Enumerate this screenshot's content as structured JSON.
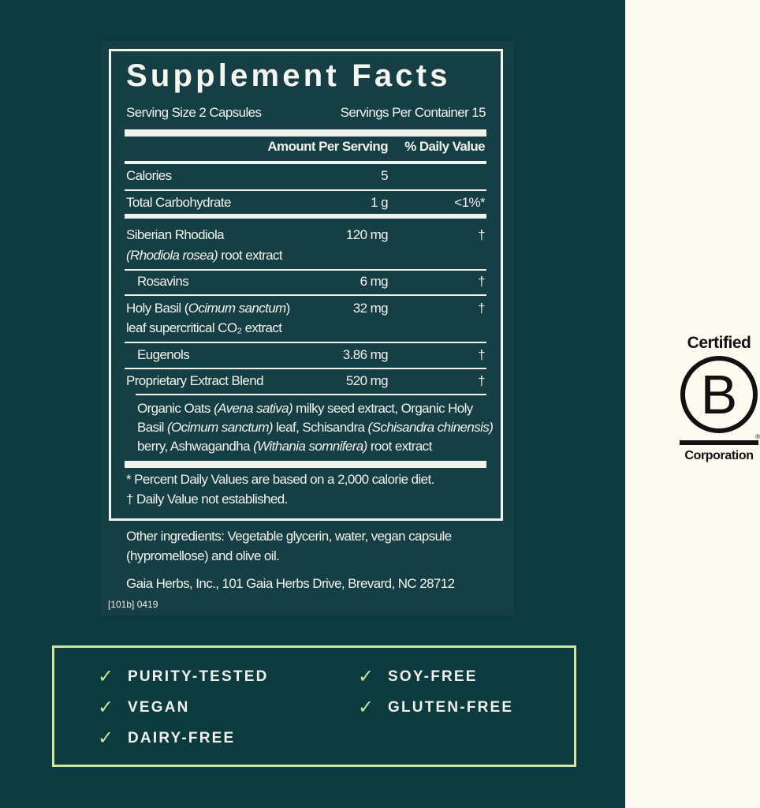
{
  "colors": {
    "background": "#0b3a3f",
    "panel": "#153f44",
    "accent": "#cfe6a4",
    "side": "#fdfaf0"
  },
  "label": {
    "title": "Supplement Facts",
    "serving_size": "Serving Size 2 Capsules",
    "servings_per_container": "Servings Per Container 15",
    "col_amount": "Amount  Per Serving",
    "col_dv": "% Daily Value",
    "rows": [
      {
        "name": "Calories",
        "amount": "5",
        "dv": ""
      },
      {
        "name": "Total Carbohydrate",
        "amount": "1 g",
        "dv": "<1%*"
      },
      {
        "name": "Siberian Rhodiola",
        "latin": "(Rhodiola rosea)",
        "name2": " root extract",
        "amount": "120 mg",
        "dv": "†"
      },
      {
        "name": "Rosavins",
        "amount": "6 mg",
        "dv": "†"
      },
      {
        "name": "Holy Basil (",
        "latin": "Ocimum sanctum",
        "name_end": ")",
        "name2": "leaf supercritical CO₂ extract",
        "amount": "32 mg",
        "dv": "†"
      },
      {
        "name": "Eugenols",
        "amount": "3.86 mg",
        "dv": "†"
      },
      {
        "name": "Proprietary Extract Blend",
        "amount": "520 mg",
        "dv": "†"
      }
    ],
    "blend": [
      {
        "a": "Organic Oats ",
        "i": "(Avena sativa)",
        "b": " milky seed extract, Organic Holy"
      },
      {
        "a": "Basil ",
        "i": "(Ocimum sanctum)",
        "b": " leaf, Schisandra ",
        "i2": "(Schisandra chinensis)"
      },
      {
        "a": "berry, Ashwagandha ",
        "i": "(Withania somnifera)",
        "b": " root extract"
      }
    ],
    "footnote1": "* Percent Daily Values are based on a 2,000 calorie diet.",
    "footnote2": "† Daily Value not established."
  },
  "other_ingredients_1": "Other ingredients: Vegetable glycerin, water, vegan capsule",
  "other_ingredients_2": "(hypromellose) and olive oil.",
  "address": "Gaia Herbs, Inc., 101 Gaia Herbs Drive, Brevard, NC 28712",
  "code": "[101b] 0419",
  "claims": [
    "PURITY-TESTED",
    "VEGAN",
    "DAIRY-FREE",
    "SOY-FREE",
    "GLUTEN-FREE"
  ],
  "check_icon": "✓",
  "bcorp": {
    "top": "Certified",
    "letter": "B",
    "bottom": "Corporation",
    "reg": "®"
  }
}
